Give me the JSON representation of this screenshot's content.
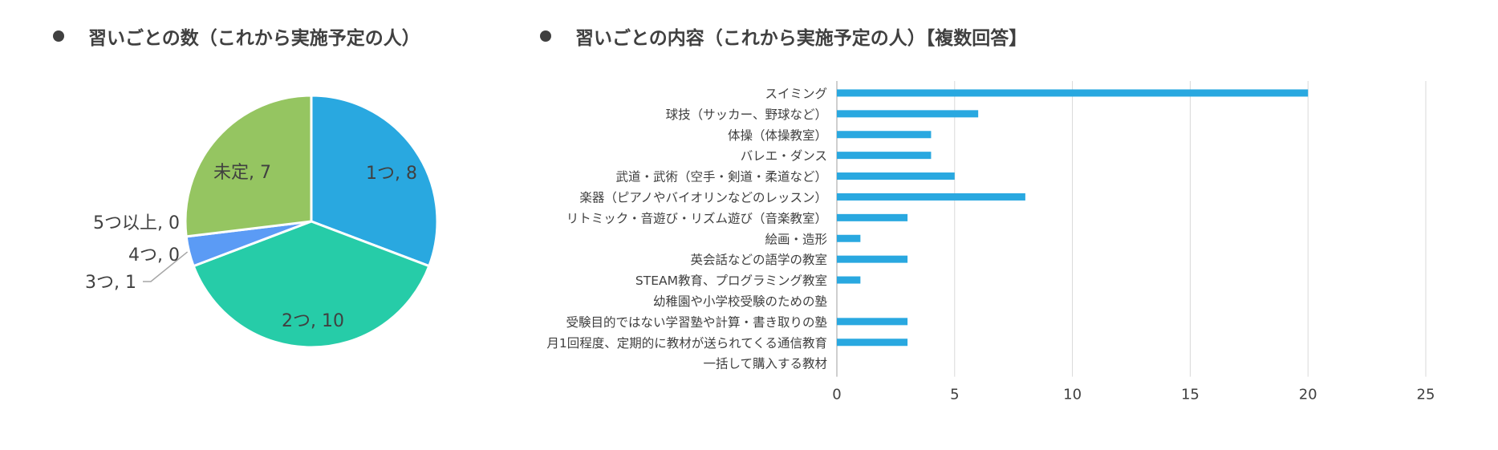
{
  "left_title": "習いごとの数（これから実施予定の人）",
  "right_title": "習いごとの内容（これから実施予定の人）【複数回答】",
  "chart_data": [
    {
      "type": "pie",
      "title": "習いごとの数（これから実施予定の人）",
      "slices": [
        {
          "label": "1つ",
          "value": 8,
          "color": "#29a8e0",
          "text": "1つ, 8"
        },
        {
          "label": "2つ",
          "value": 10,
          "color": "#26cca8",
          "text": "2つ, 10"
        },
        {
          "label": "3つ",
          "value": 1,
          "color": "#5b9bf5",
          "text": "3つ, 1"
        },
        {
          "label": "4つ",
          "value": 0,
          "color": "#ffc000",
          "text": "4つ, 0"
        },
        {
          "label": "5つ以上",
          "value": 0,
          "color": "#ed7d31",
          "text": "5つ以上, 0"
        },
        {
          "label": "未定",
          "value": 7,
          "color": "#95c561",
          "text": "未定, 7"
        }
      ]
    },
    {
      "type": "bar",
      "orientation": "horizontal",
      "title": "習いごとの内容（これから実施予定の人）【複数回答】",
      "color": "#29a8e0",
      "categories": [
        "スイミング",
        "球技（サッカー、野球など）",
        "体操（体操教室）",
        "バレエ・ダンス",
        "武道・武術（空手・剣道・柔道など）",
        "楽器（ピアノやバイオリンなどのレッスン）",
        "リトミック・音遊び・リズム遊び（音楽教室）",
        "絵画・造形",
        "英会話などの語学の教室",
        "STEAM教育、プログラミング教室",
        "幼稚園や小学校受験のための塾",
        "受験目的ではない学習塾や計算・書き取りの塾",
        "月1回程度、定期的に教材が送られてくる通信教育",
        "一括して購入する教材"
      ],
      "values": [
        20,
        6,
        4,
        4,
        5,
        8,
        3,
        1,
        3,
        1,
        0,
        3,
        3,
        0
      ],
      "xlim": [
        0,
        25
      ],
      "xticks": [
        "0",
        "5",
        "10",
        "15",
        "20",
        "25"
      ],
      "grid": true
    }
  ]
}
